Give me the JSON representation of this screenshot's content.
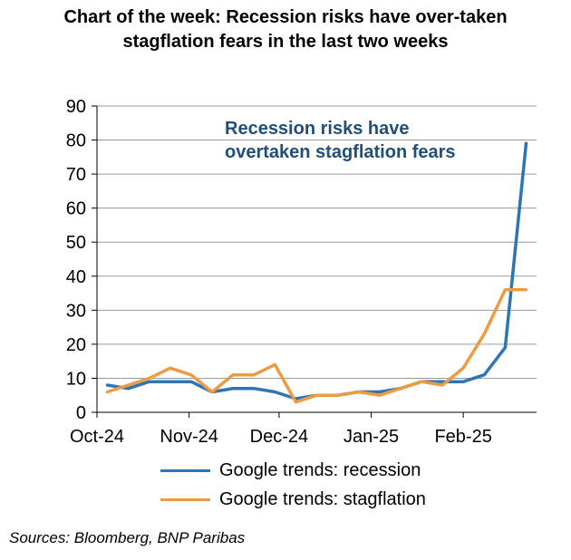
{
  "chart_data": {
    "type": "line",
    "title": "Chart of the week: Recession risks have over-taken stagflation fears in the last two weeks",
    "title_lines": [
      "Chart of the week: Recession risks have over-taken",
      "stagflation fears in the last two weeks"
    ],
    "annotation_lines": [
      "Recession risks have",
      "overtaken stagflation fears"
    ],
    "ylim": [
      0,
      90
    ],
    "yticks": [
      0,
      10,
      20,
      30,
      40,
      50,
      60,
      70,
      80,
      90
    ],
    "x_labels": [
      "Oct-24",
      "Nov-24",
      "Dec-24",
      "Jan-25",
      "Feb-25"
    ],
    "x_label_week_index": [
      0,
      4.4,
      8.7,
      13.1,
      17.5
    ],
    "num_weeks": 21,
    "grid": true,
    "series": [
      {
        "name": "Google trends: recession",
        "color": "#2e75b6",
        "values": [
          8,
          7,
          9,
          9,
          9,
          6,
          7,
          7,
          6,
          4,
          5,
          5,
          6,
          6,
          7,
          9,
          9,
          9,
          11,
          19,
          79
        ]
      },
      {
        "name": "Google trends: stagflation",
        "color": "#ed9b40",
        "values": [
          6,
          8,
          10,
          13,
          11,
          6,
          11,
          11,
          14,
          3,
          5,
          5,
          6,
          5,
          7,
          9,
          8,
          13,
          23,
          36,
          36
        ]
      }
    ],
    "legend": [
      "Google trends: recession",
      "Google trends: stagflation"
    ],
    "source": "Sources: Bloomberg, BNP Paribas"
  }
}
